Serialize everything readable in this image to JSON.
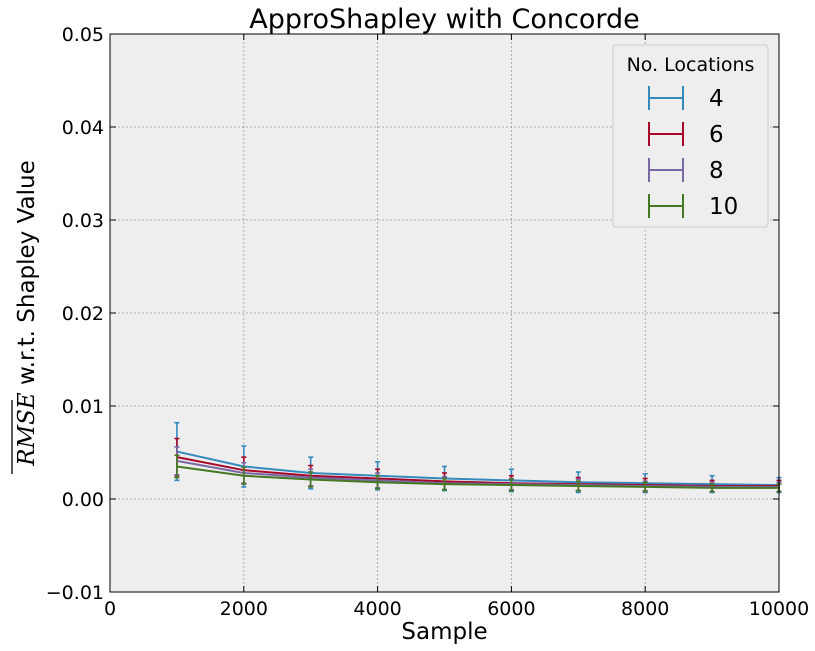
{
  "chart_data": {
    "type": "line",
    "title": "ApproShapley with Concorde",
    "xlabel": "Sample",
    "ylabel_math": "RMSE",
    "ylabel_rest": " w.r.t. Shapley Value",
    "xlim": [
      0,
      10000
    ],
    "ylim": [
      -0.01,
      0.05
    ],
    "xticks": [
      0,
      2000,
      4000,
      6000,
      8000,
      10000
    ],
    "xtick_labels": [
      "0",
      "2000",
      "4000",
      "6000",
      "8000",
      "10000"
    ],
    "yticks": [
      -0.01,
      0.0,
      0.01,
      0.02,
      0.03,
      0.04,
      0.05
    ],
    "ytick_labels": [
      "−0.01",
      "0.00",
      "0.01",
      "0.02",
      "0.03",
      "0.04",
      "0.05"
    ],
    "grid": true,
    "legend_title": "No. Locations",
    "legend_position": "top-right",
    "x": [
      1000,
      2000,
      3000,
      4000,
      5000,
      6000,
      7000,
      8000,
      9000,
      10000
    ],
    "series": [
      {
        "name": "4",
        "color": "#348abd",
        "values": [
          0.0051,
          0.0035,
          0.0028,
          0.0025,
          0.0022,
          0.002,
          0.0018,
          0.0017,
          0.0016,
          0.0015
        ],
        "errors": [
          0.0031,
          0.0022,
          0.0017,
          0.0015,
          0.0013,
          0.0012,
          0.0011,
          0.001,
          0.0009,
          0.0008
        ]
      },
      {
        "name": "6",
        "color": "#a60628",
        "values": [
          0.0045,
          0.0031,
          0.0025,
          0.0022,
          0.0019,
          0.0017,
          0.0016,
          0.0015,
          0.0014,
          0.0014
        ],
        "errors": [
          0.002,
          0.0014,
          0.0011,
          0.001,
          0.0009,
          0.0008,
          0.0007,
          0.0007,
          0.0006,
          0.0006
        ]
      },
      {
        "name": "8",
        "color": "#7a68a6",
        "values": [
          0.0041,
          0.0028,
          0.0023,
          0.002,
          0.0017,
          0.0016,
          0.0015,
          0.0014,
          0.0013,
          0.0013
        ],
        "errors": [
          0.0015,
          0.0011,
          0.0009,
          0.0008,
          0.0007,
          0.0006,
          0.0006,
          0.0005,
          0.0005,
          0.0005
        ]
      },
      {
        "name": "10",
        "color": "#467821",
        "values": [
          0.0035,
          0.0025,
          0.0021,
          0.0018,
          0.0016,
          0.0015,
          0.0014,
          0.0013,
          0.0012,
          0.0012
        ],
        "errors": [
          0.0012,
          0.0009,
          0.0008,
          0.0007,
          0.0006,
          0.0006,
          0.0005,
          0.0005,
          0.0004,
          0.0004
        ]
      }
    ]
  }
}
